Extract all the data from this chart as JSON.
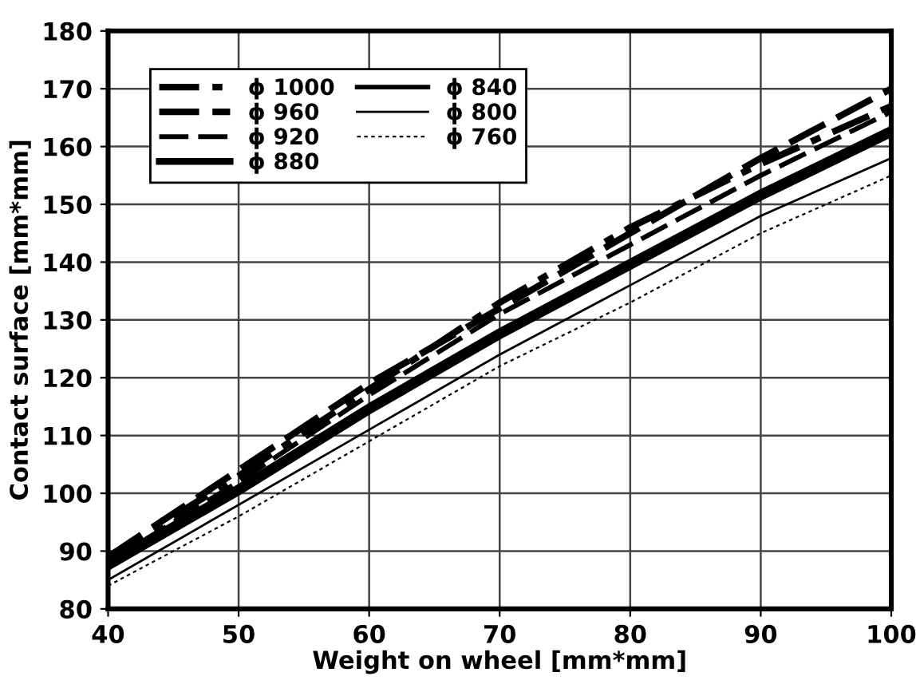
{
  "chart_data": {
    "type": "line",
    "xlabel": "Weight on wheel [mm*mm]",
    "ylabel": "Contact surface [mm*mm]",
    "x": [
      40,
      50,
      60,
      70,
      80,
      90,
      100
    ],
    "series": [
      {
        "name": "ϕ 1000",
        "color": "#000000",
        "line_style": "dashdot",
        "values": [
          89,
          103,
          118,
          133,
          146,
          157,
          167
        ]
      },
      {
        "name": "ϕ 960",
        "color": "#000000",
        "line_style": "dashed",
        "values": [
          89,
          104,
          119,
          132,
          145,
          158,
          170
        ]
      },
      {
        "name": "ϕ 920",
        "color": "#000000",
        "line_style": "dashed",
        "values": [
          88,
          102,
          117,
          131,
          143,
          155,
          166
        ]
      },
      {
        "name": "ϕ 880",
        "color": "#000000",
        "line_style": "solid",
        "values": [
          88,
          101,
          115,
          128,
          140,
          152,
          163
        ]
      },
      {
        "name": "ϕ 840",
        "color": "#000000",
        "line_style": "solid",
        "values": [
          87,
          100,
          114,
          127,
          139,
          151,
          162
        ]
      },
      {
        "name": "ϕ 800",
        "color": "#000000",
        "line_style": "solid",
        "values": [
          85,
          98,
          111,
          124,
          136,
          148,
          158
        ]
      },
      {
        "name": "ϕ 760",
        "color": "#000000",
        "line_style": "dotted",
        "values": [
          84,
          96,
          109,
          122,
          133,
          145,
          155
        ]
      }
    ],
    "xlim": [
      40,
      100
    ],
    "xticks": [
      40,
      50,
      60,
      70,
      80,
      90,
      100
    ],
    "ylim": [
      80,
      180
    ],
    "yticks": [
      80,
      90,
      100,
      110,
      120,
      130,
      140,
      150,
      160,
      170,
      180
    ],
    "grid": true,
    "legend": "top left",
    "marker": "none"
  }
}
